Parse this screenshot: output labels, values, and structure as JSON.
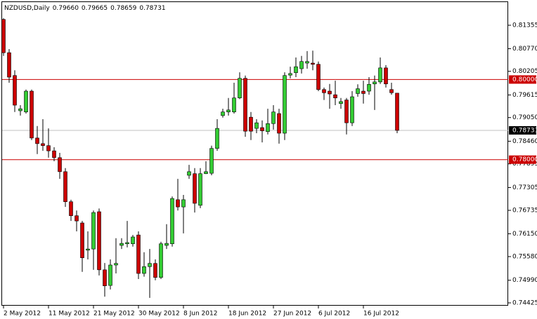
{
  "chart_data": {
    "type": "candlestick",
    "title": "NZDUSD,Daily",
    "title_values": [
      "0.79660",
      "0.79665",
      "0.78659",
      "0.78731"
    ],
    "categories": [
      "2 May 2012",
      null,
      null,
      null,
      null,
      null,
      null,
      null,
      "11 May 2012",
      null,
      null,
      null,
      null,
      null,
      null,
      null,
      "21 May 2012",
      null,
      null,
      null,
      null,
      null,
      null,
      null,
      "30 May 2012",
      null,
      null,
      null,
      null,
      null,
      null,
      null,
      "8 Jun 2012",
      null,
      null,
      null,
      null,
      null,
      null,
      null,
      "18 Jun 2012",
      null,
      null,
      null,
      null,
      null,
      null,
      null,
      "27 Jun 2012",
      null,
      null,
      null,
      null,
      null,
      null,
      null,
      "6 Jul 2012",
      null,
      null,
      null,
      null,
      null,
      null,
      null,
      "16 Jul 2012",
      null,
      null,
      null,
      null,
      null,
      null
    ],
    "open": [
      0.815,
      0.8067,
      0.801,
      0.7922,
      0.7919,
      0.7971,
      0.7854,
      0.784,
      0.7835,
      0.7822,
      0.7805,
      0.777,
      0.7695,
      0.766,
      0.7642,
      0.7574,
      0.7577,
      0.767,
      0.7525,
      0.7486,
      0.7537,
      0.7586,
      0.759,
      0.759,
      0.7612,
      0.7516,
      0.7533,
      0.7541,
      0.7506,
      0.7586,
      0.759,
      0.77,
      0.7682,
      0.7761,
      0.7765,
      0.7686,
      0.7765,
      0.7766,
      0.7828,
      0.791,
      0.7919,
      0.7919,
      0.7954,
      0.8003,
      0.7906,
      0.7878,
      0.788,
      0.787,
      0.789,
      0.7915,
      0.7866,
      0.8011,
      0.8017,
      0.8027,
      0.8041,
      0.8041,
      0.8038,
      0.7975,
      0.7971,
      0.7962,
      0.794,
      0.7949,
      0.7892,
      0.7965,
      0.7971,
      0.7971,
      0.7989,
      0.7994,
      0.8029,
      0.7975,
      0.7966
    ],
    "high": [
      0.8153,
      0.8076,
      0.8023,
      0.7936,
      0.7975,
      0.7975,
      0.7884,
      0.7901,
      0.7878,
      0.7831,
      0.7817,
      0.7779,
      0.77,
      0.7673,
      0.7647,
      0.7621,
      0.7673,
      0.7678,
      0.7542,
      0.7551,
      0.7604,
      0.7604,
      0.7647,
      0.7612,
      0.7621,
      0.7569,
      0.7577,
      0.7551,
      0.7595,
      0.7639,
      0.7708,
      0.7752,
      0.7712,
      0.7787,
      0.7779,
      0.7779,
      0.7796,
      0.7835,
      0.7901,
      0.7927,
      0.7954,
      0.7992,
      0.8018,
      0.801,
      0.7919,
      0.7901,
      0.7898,
      0.7927,
      0.7936,
      0.7927,
      0.8018,
      0.8032,
      0.8055,
      0.8059,
      0.8071,
      0.8072,
      0.8045,
      0.798,
      0.7989,
      0.7997,
      0.7954,
      0.7954,
      0.7971,
      0.7988,
      0.7997,
      0.8006,
      0.801,
      0.8055,
      0.8036,
      0.7992,
      0.79665
    ],
    "low": [
      0.8059,
      0.7992,
      0.7919,
      0.791,
      0.7915,
      0.7849,
      0.7814,
      0.7822,
      0.7805,
      0.7796,
      0.7752,
      0.7682,
      0.7647,
      0.7621,
      0.752,
      0.7551,
      0.7525,
      0.7511,
      0.7458,
      0.7476,
      0.7516,
      0.7577,
      0.7581,
      0.7583,
      0.7502,
      0.7508,
      0.7455,
      0.7499,
      0.7502,
      0.7577,
      0.7583,
      0.7673,
      0.7616,
      0.7752,
      0.7668,
      0.7679,
      0.7764,
      0.7761,
      0.7822,
      0.7905,
      0.791,
      0.7915,
      0.7951,
      0.7857,
      0.7849,
      0.7866,
      0.7843,
      0.7863,
      0.7875,
      0.784,
      0.7849,
      0.8003,
      0.8006,
      0.8015,
      0.8027,
      0.8023,
      0.7971,
      0.7949,
      0.7927,
      0.7936,
      0.7927,
      0.7863,
      0.7884,
      0.7957,
      0.794,
      0.7962,
      0.7924,
      0.7989,
      0.798,
      0.7962,
      0.78659
    ],
    "close": [
      0.8067,
      0.8006,
      0.7936,
      0.7927,
      0.7971,
      0.7854,
      0.784,
      0.7835,
      0.7822,
      0.7805,
      0.777,
      0.7695,
      0.766,
      0.7647,
      0.7555,
      0.7577,
      0.7668,
      0.7525,
      0.7485,
      0.7537,
      0.7541,
      0.7591,
      0.7593,
      0.7607,
      0.7516,
      0.7533,
      0.7541,
      0.7506,
      0.759,
      0.7591,
      0.7703,
      0.7682,
      0.77,
      0.777,
      0.7691,
      0.7765,
      0.777,
      0.7828,
      0.7878,
      0.7919,
      0.7924,
      0.7954,
      0.8003,
      0.7871,
      0.7871,
      0.7892,
      0.7872,
      0.789,
      0.7919,
      0.7866,
      0.801,
      0.8015,
      0.8032,
      0.8045,
      0.8045,
      0.8038,
      0.7975,
      0.7967,
      0.7964,
      0.7954,
      0.7945,
      0.7892,
      0.7957,
      0.7977,
      0.7965,
      0.7988,
      0.7994,
      0.8029,
      0.7989,
      0.7967,
      0.78731
    ],
    "up_color": "#33cc33",
    "down_color": "#cc0000",
    "ylim": [
      0.74355,
      0.8195
    ],
    "yticks": [
      {
        "value": 0.81355,
        "label": "0.81355"
      },
      {
        "value": 0.8077,
        "label": "0.80770"
      },
      {
        "value": 0.80205,
        "label": "0.80205"
      },
      {
        "value": 0.79615,
        "label": "0.79615"
      },
      {
        "value": 0.7905,
        "label": "0.79050"
      },
      {
        "value": 0.7846,
        "label": "0.78460"
      },
      {
        "value": 0.77895,
        "label": "0.77895"
      },
      {
        "value": 0.77305,
        "label": "0.77305"
      },
      {
        "value": 0.76735,
        "label": "0.76735"
      },
      {
        "value": 0.7615,
        "label": "0.76150"
      },
      {
        "value": 0.7558,
        "label": "0.75580"
      },
      {
        "value": 0.7499,
        "label": "0.74990"
      },
      {
        "value": 0.74425,
        "label": "0.74425"
      }
    ],
    "levels": [
      {
        "value": 0.8,
        "label": "0.80000",
        "color": "#cc0000"
      },
      {
        "value": 0.78,
        "label": "0.78000",
        "color": "#cc0000"
      }
    ],
    "last_price": {
      "value": 0.78731,
      "label": "0.78731",
      "color": "#c0c0c0"
    }
  }
}
